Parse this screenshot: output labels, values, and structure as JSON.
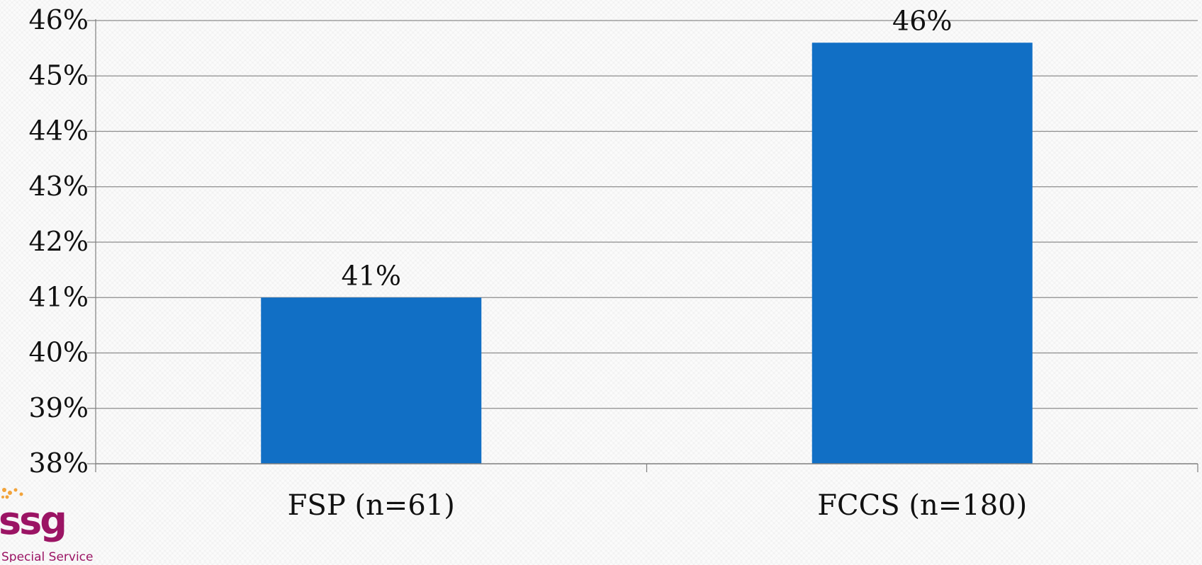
{
  "chart_data": {
    "type": "bar",
    "categories": [
      "FSP (n=61)",
      "FCCS (n=180)"
    ],
    "values": [
      41,
      45.6
    ],
    "data_labels": [
      "41%",
      "46%"
    ],
    "title": "",
    "xlabel": "",
    "ylabel": "",
    "ylim": [
      38,
      46
    ],
    "yticks": [
      38,
      39,
      40,
      41,
      42,
      43,
      44,
      45,
      46
    ],
    "ytick_labels": [
      "38%",
      "39%",
      "40%",
      "41%",
      "42%",
      "43%",
      "44%",
      "45%",
      "46%"
    ],
    "grid": true,
    "bar_color": "#116fc5",
    "axis_color": "#7f7f7f"
  },
  "logo": {
    "text": "ssg",
    "subtext": "Special Service",
    "color": "#9b1464",
    "dot_color": "#f2a33a"
  }
}
